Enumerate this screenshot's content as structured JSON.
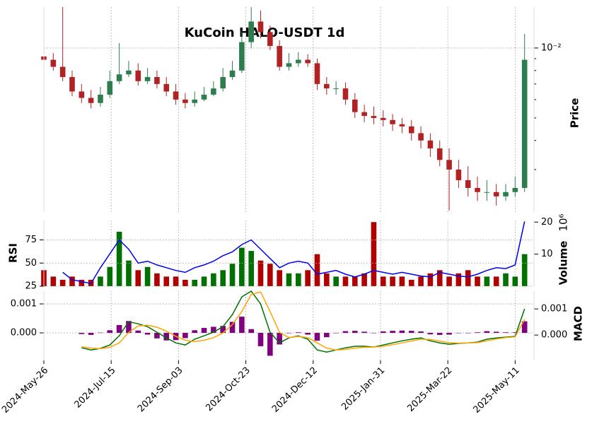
{
  "chart_data": [
    {
      "type": "candlestick",
      "title": "KuCoin HALO-USDT 1d",
      "ylabel": "Price",
      "log_scale": true,
      "grid": true,
      "up_color": "#2e7d4f",
      "down_color": "#b22222",
      "x": [
        "2024-05-26",
        "2024-06-02",
        "2024-06-09",
        "2024-06-16",
        "2024-06-23",
        "2024-06-30",
        "2024-07-07",
        "2024-07-14",
        "2024-07-21",
        "2024-07-28",
        "2024-08-04",
        "2024-08-11",
        "2024-08-18",
        "2024-08-25",
        "2024-09-01",
        "2024-09-08",
        "2024-09-15",
        "2024-09-22",
        "2024-09-29",
        "2024-10-06",
        "2024-10-13",
        "2024-10-20",
        "2024-10-27",
        "2024-11-03",
        "2024-11-10",
        "2024-11-17",
        "2024-11-24",
        "2024-12-01",
        "2024-12-08",
        "2024-12-15",
        "2024-12-22",
        "2024-12-29",
        "2025-01-05",
        "2025-01-12",
        "2025-01-19",
        "2025-01-26",
        "2025-02-02",
        "2025-02-09",
        "2025-02-16",
        "2025-02-23",
        "2025-03-02",
        "2025-03-09",
        "2025-03-16",
        "2025-03-23",
        "2025-03-30",
        "2025-04-06",
        "2025-04-13",
        "2025-04-20",
        "2025-04-27",
        "2025-05-04",
        "2025-05-11",
        "2025-05-18"
      ],
      "open": [
        0.0092,
        0.0089,
        0.0083,
        0.0075,
        0.0065,
        0.0061,
        0.0058,
        0.0063,
        0.0072,
        0.0077,
        0.008,
        0.0072,
        0.0075,
        0.007,
        0.0065,
        0.006,
        0.0058,
        0.006,
        0.0063,
        0.0067,
        0.0075,
        0.008,
        0.0106,
        0.013,
        0.0117,
        0.0102,
        0.0083,
        0.0086,
        0.0089,
        0.0086,
        0.007,
        0.0067,
        0.0067,
        0.006,
        0.0053,
        0.0051,
        0.005,
        0.0049,
        0.0047,
        0.0046,
        0.0043,
        0.004,
        0.0037,
        0.0033,
        0.003,
        0.0027,
        0.0025,
        0.0024,
        0.0024,
        0.0023,
        0.0024,
        0.0025
      ],
      "high": [
        0.01,
        0.0095,
        0.015,
        0.008,
        0.007,
        0.0066,
        0.0068,
        0.008,
        0.0105,
        0.0088,
        0.0086,
        0.0082,
        0.008,
        0.0075,
        0.007,
        0.0064,
        0.0065,
        0.0068,
        0.0072,
        0.0082,
        0.0088,
        0.0118,
        0.015,
        0.0145,
        0.0125,
        0.0108,
        0.0095,
        0.0096,
        0.0094,
        0.009,
        0.0075,
        0.0072,
        0.0071,
        0.0064,
        0.0057,
        0.0056,
        0.0054,
        0.0052,
        0.005,
        0.0049,
        0.0046,
        0.0043,
        0.004,
        0.0037,
        0.0033,
        0.0031,
        0.0028,
        0.0027,
        0.0026,
        0.0026,
        0.0028,
        0.0115
      ],
      "low": [
        0.0085,
        0.008,
        0.0072,
        0.0062,
        0.0058,
        0.0055,
        0.0056,
        0.0061,
        0.007,
        0.0075,
        0.0069,
        0.007,
        0.0067,
        0.0062,
        0.0057,
        0.0055,
        0.0056,
        0.0059,
        0.0062,
        0.0065,
        0.0073,
        0.0078,
        0.01,
        0.011,
        0.0098,
        0.008,
        0.008,
        0.0083,
        0.0083,
        0.0066,
        0.0063,
        0.0063,
        0.0057,
        0.005,
        0.0048,
        0.0047,
        0.0046,
        0.0044,
        0.0043,
        0.004,
        0.0037,
        0.0034,
        0.0031,
        0.002,
        0.0025,
        0.0023,
        0.0022,
        0.0022,
        0.0021,
        0.0022,
        0.0023,
        0.0024
      ],
      "close": [
        0.0089,
        0.0083,
        0.0075,
        0.0065,
        0.0061,
        0.0058,
        0.0063,
        0.0072,
        0.0077,
        0.008,
        0.0072,
        0.0075,
        0.007,
        0.0065,
        0.006,
        0.0058,
        0.006,
        0.0063,
        0.0067,
        0.0075,
        0.008,
        0.0106,
        0.013,
        0.0117,
        0.0102,
        0.0083,
        0.0086,
        0.0089,
        0.0086,
        0.007,
        0.0067,
        0.0067,
        0.006,
        0.0053,
        0.0051,
        0.005,
        0.0049,
        0.0047,
        0.0046,
        0.0043,
        0.004,
        0.0037,
        0.0033,
        0.003,
        0.0027,
        0.0025,
        0.0024,
        0.0024,
        0.0023,
        0.0024,
        0.0025,
        0.0089
      ],
      "xlim": [
        "2024-05-26",
        "2025-05-25"
      ],
      "xticks": [
        {
          "value": "2024-05-26",
          "label": "2024-May-26"
        },
        {
          "value": "2024-07-15",
          "label": "2024-Jul-15"
        },
        {
          "value": "2024-09-03",
          "label": "2024-Sep-03"
        },
        {
          "value": "2024-10-23",
          "label": "2024-Oct-23"
        },
        {
          "value": "2024-12-12",
          "label": "2024-Dec-12"
        },
        {
          "value": "2025-01-31",
          "label": "2025-Jan-31"
        },
        {
          "value": "2025-03-22",
          "label": "2025-Mar-22"
        },
        {
          "value": "2025-05-11",
          "label": "2025-May-11"
        }
      ],
      "ylim": [
        0.00197,
        0.015
      ],
      "yticks": [
        {
          "value": 0.01,
          "label": "10⁻²"
        }
      ],
      "yminorticks": [
        0.003,
        0.004,
        0.005,
        0.006,
        0.007,
        0.008,
        0.009
      ]
    },
    {
      "type": "volume",
      "ylabel": "Volume",
      "offset_label": "10⁶",
      "up_color": "#007000",
      "down_color": "#b00000",
      "values": [
        5,
        3,
        2,
        3,
        2,
        2,
        3,
        6,
        17,
        8,
        5,
        6,
        4,
        3,
        3,
        2,
        2,
        3,
        4,
        5,
        7,
        12,
        11,
        8,
        7,
        5,
        4,
        4,
        5,
        10,
        4,
        3,
        3,
        3,
        4,
        20,
        3,
        3,
        3,
        2,
        3,
        4,
        5,
        3,
        4,
        5,
        3,
        3,
        3,
        4,
        3,
        10
      ],
      "ylim": [
        0,
        20.5
      ],
      "yticks": [
        10,
        20
      ]
    },
    {
      "type": "rsi",
      "ylabel": "RSI",
      "color": "#0000ee",
      "values": [
        null,
        null,
        40,
        32,
        30,
        28,
        45,
        60,
        75,
        65,
        50,
        52,
        48,
        45,
        42,
        40,
        45,
        48,
        52,
        58,
        62,
        70,
        75,
        65,
        55,
        45,
        50,
        52,
        50,
        38,
        40,
        42,
        38,
        35,
        38,
        42,
        40,
        38,
        40,
        38,
        36,
        35,
        40,
        38,
        36,
        35,
        38,
        42,
        45,
        44,
        48,
        95
      ],
      "ylim": [
        25,
        96
      ],
      "yticks": [
        25,
        50,
        75
      ]
    },
    {
      "type": "macd",
      "ylabel": "MACD",
      "ylim": [
        -0.00095,
        0.00144
      ],
      "yticks": [
        {
          "value": 0,
          "label": "0.000"
        },
        0.001
      ],
      "y2lim": [
        -0.00097,
        0.00168
      ],
      "y2ticks": [
        {
          "value": 0,
          "label": "0.000"
        },
        0.001
      ],
      "series": [
        {
          "kind": "bar",
          "color": "#800080",
          "values": [
            null,
            null,
            null,
            null,
            -4e-05,
            -7e-05,
            1e-05,
            9e-05,
            0.00027,
            0.00041,
            8e-05,
            -6e-05,
            -0.00019,
            -0.00026,
            -0.00025,
            -0.00018,
            9e-05,
            0.00017,
            0.00021,
            0.00024,
            0.00038,
            0.00056,
            0.00013,
            -0.00046,
            -0.00079,
            -0.0004,
            -1e-05,
            2e-05,
            -6e-05,
            -0.00027,
            -0.00015,
            0,
            6e-05,
            7e-05,
            4e-05,
            0,
            5e-05,
            7e-05,
            8e-05,
            7e-05,
            5e-05,
            -5e-05,
            -7e-05,
            -6e-05,
            -1e-05,
            0,
            2e-05,
            6e-05,
            4e-05,
            2e-05,
            2e-05,
            0.0004
          ]
        },
        {
          "kind": "line",
          "axis": "y2",
          "color": "#007000",
          "values": [
            null,
            null,
            null,
            null,
            -0.00049,
            -0.00057,
            -0.00051,
            -0.00038,
            -3e-05,
            0.00051,
            0.00043,
            0.00032,
            0.00011,
            -0.00011,
            -0.0003,
            -0.00038,
            -0.00016,
            -3e-05,
            0.00011,
            0.00032,
            0.00078,
            0.00146,
            0.00168,
            0.00119,
            0.00011,
            -0.0003,
            -0.00011,
            -3e-05,
            -0.00016,
            -0.00057,
            -0.00065,
            -0.00057,
            -0.00049,
            -0.00043,
            -0.00043,
            -0.00046,
            -0.00038,
            -0.0003,
            -0.00022,
            -0.00016,
            -0.00011,
            -0.00022,
            -0.0003,
            -0.00035,
            -0.00032,
            -0.0003,
            -0.00027,
            -0.00016,
            -0.00011,
            -8e-05,
            -5e-05,
            0.001
          ]
        },
        {
          "kind": "line",
          "axis": "y2",
          "color": "#ffa500",
          "values": [
            null,
            null,
            null,
            null,
            -0.00045,
            -0.0005,
            -0.00052,
            -0.00047,
            -0.0003,
            0.0001,
            0.00035,
            0.00038,
            0.0003,
            0.00015,
            -5e-05,
            -0.0002,
            -0.00025,
            -0.0002,
            -0.0001,
            8e-05,
            0.0004,
            0.0009,
            0.00155,
            0.00165,
            0.0009,
            0.0001,
            -0.0001,
            -5e-05,
            -0.0001,
            -0.0003,
            -0.0005,
            -0.00057,
            -0.00055,
            -0.0005,
            -0.00047,
            -0.00046,
            -0.00043,
            -0.00037,
            -0.0003,
            -0.00023,
            -0.00016,
            -0.00017,
            -0.00023,
            -0.00029,
            -0.00031,
            -0.0003,
            -0.00029,
            -0.00022,
            -0.00015,
            -0.0001,
            -7e-05,
            0.0006
          ]
        }
      ]
    }
  ]
}
